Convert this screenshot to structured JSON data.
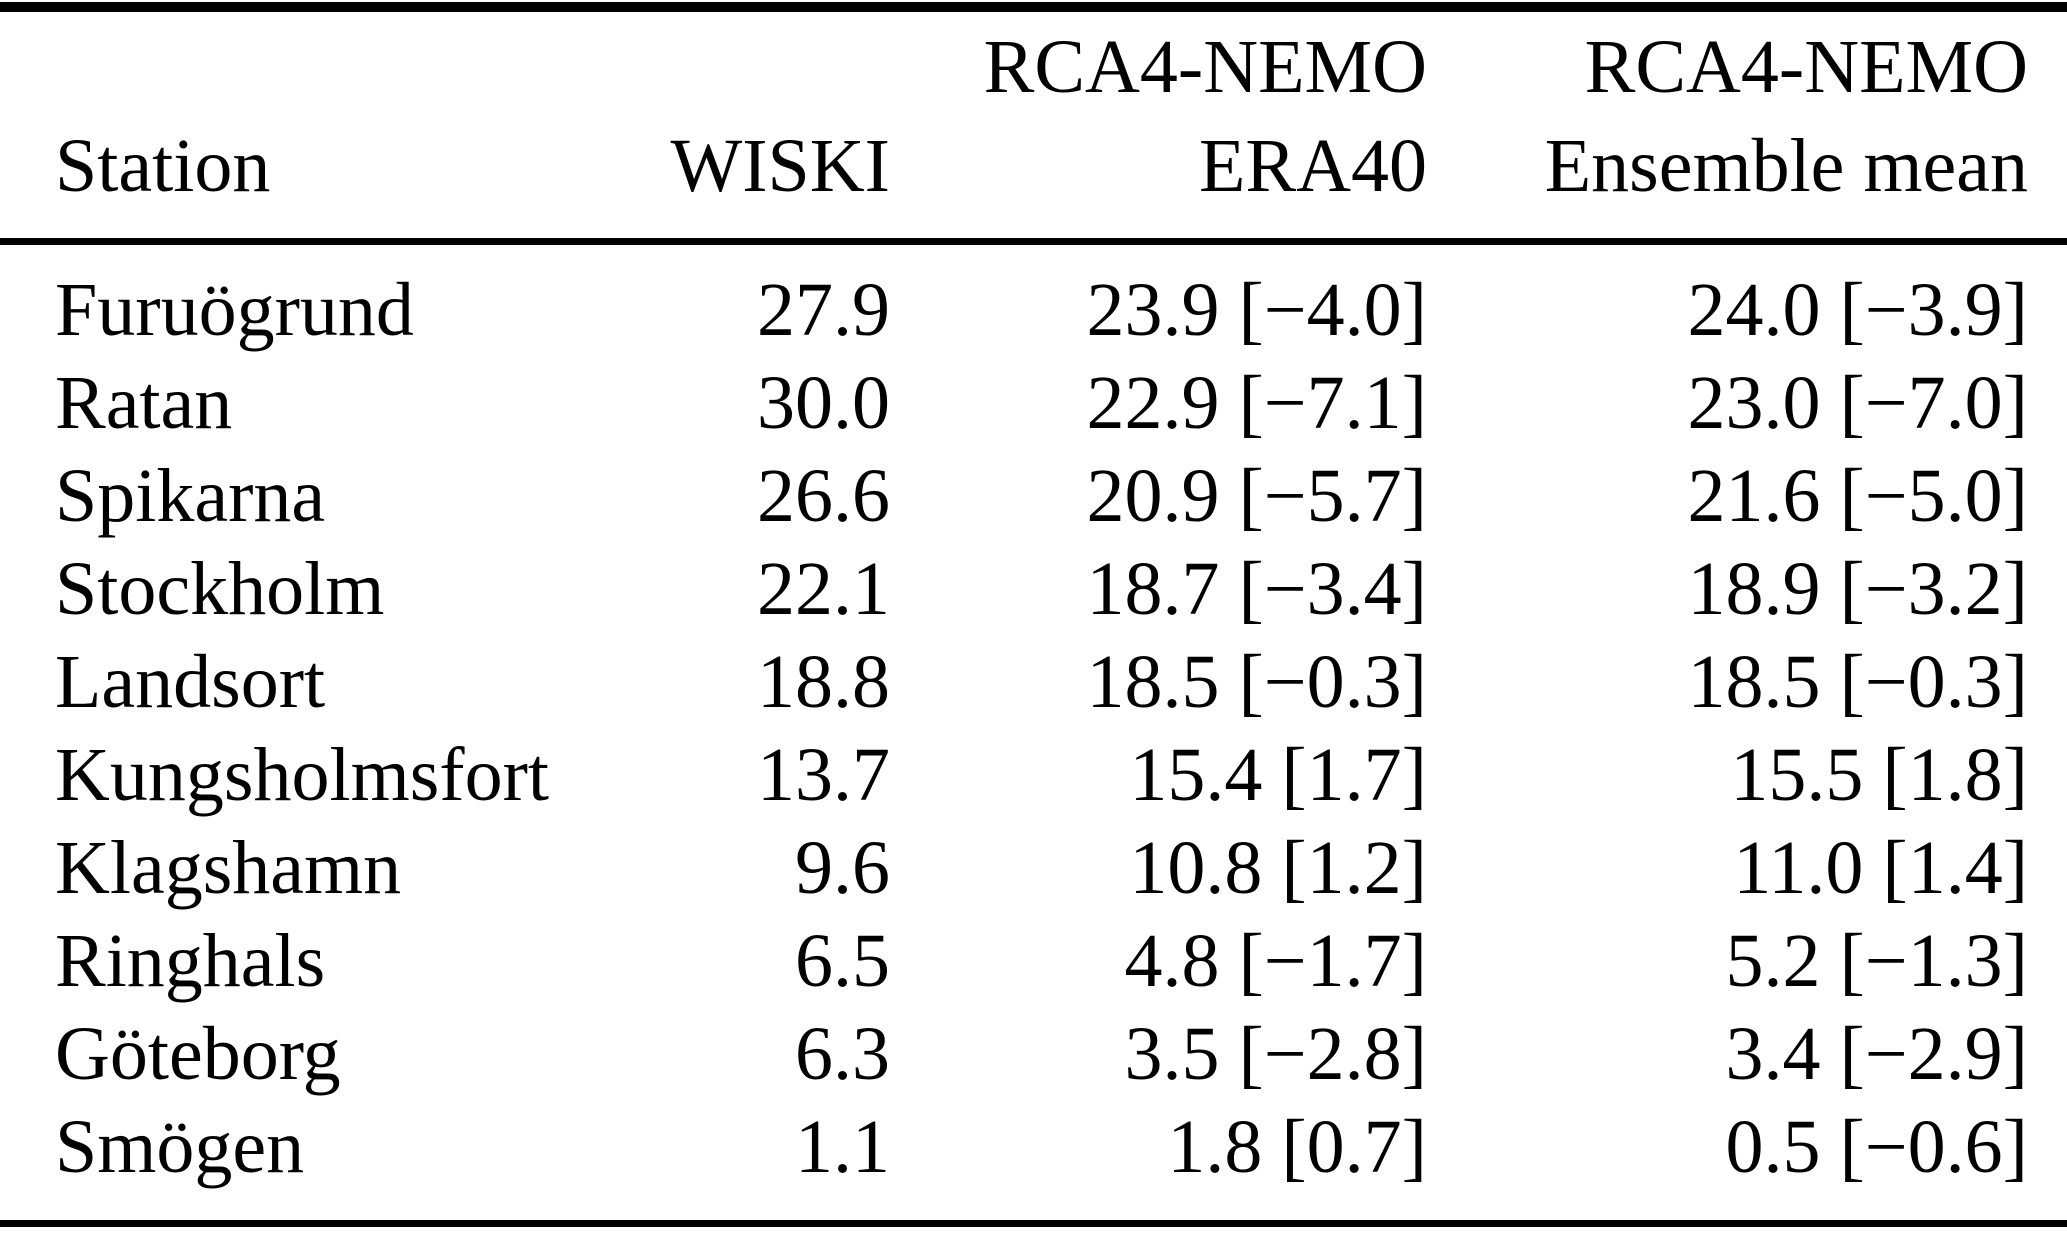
{
  "table": {
    "header": {
      "station": "Station",
      "wiski": "WISKI",
      "col3_top": "RCA4-NEMO",
      "col3_bottom": "ERA40",
      "col4_top": "RCA4-NEMO",
      "col4_bottom": "Ensemble mean"
    },
    "rows": [
      [
        "Furuögrund",
        "27.9",
        "23.9 [−4.0]",
        "24.0 [−3.9]"
      ],
      [
        "Ratan",
        "30.0",
        "22.9 [−7.1]",
        "23.0 [−7.0]"
      ],
      [
        "Spikarna",
        "26.6",
        "20.9 [−5.7]",
        "21.6 [−5.0]"
      ],
      [
        "Stockholm",
        "22.1",
        "18.7 [−3.4]",
        "18.9 [−3.2]"
      ],
      [
        "Landsort",
        "18.8",
        "18.5 [−0.3]",
        "18.5 [−0.3]"
      ],
      [
        "Kungsholmsfort",
        "13.7",
        "15.4 [1.7]",
        "15.5 [1.8]"
      ],
      [
        "Klagshamn",
        "9.6",
        "10.8 [1.2]",
        "11.0 [1.4]"
      ],
      [
        "Ringhals",
        "6.5",
        "4.8 [−1.7]",
        "5.2 [−1.3]"
      ],
      [
        "Göteborg",
        "6.3",
        "3.5 [−2.8]",
        "3.4 [−2.9]"
      ],
      [
        "Smögen",
        "1.1",
        "1.8 [0.7]",
        "0.5 [−0.6]"
      ]
    ]
  },
  "chart_data": {
    "type": "table",
    "columns": [
      "Station",
      "WISKI",
      "RCA4-NEMO ERA40",
      "RCA4-NEMO Ensemble mean"
    ],
    "stations": [
      "Furuögrund",
      "Ratan",
      "Spikarna",
      "Stockholm",
      "Landsort",
      "Kungsholmsfort",
      "Klagshamn",
      "Ringhals",
      "Göteborg",
      "Smögen"
    ],
    "wiski": [
      27.9,
      30.0,
      26.6,
      22.1,
      18.8,
      13.7,
      9.6,
      6.5,
      6.3,
      1.1
    ],
    "era40": [
      23.9,
      22.9,
      20.9,
      18.7,
      18.5,
      15.4,
      10.8,
      4.8,
      3.5,
      1.8
    ],
    "era40_bias": [
      -4.0,
      -7.1,
      -5.7,
      -3.4,
      -0.3,
      1.7,
      1.2,
      -1.7,
      -2.8,
      0.7
    ],
    "ensemble_mean": [
      24.0,
      23.0,
      21.6,
      18.9,
      18.5,
      15.5,
      11.0,
      5.2,
      3.4,
      0.5
    ],
    "ensemble_mean_bias": [
      -3.9,
      -7.0,
      -5.0,
      -3.2,
      -0.3,
      1.8,
      1.4,
      -1.3,
      -2.9,
      -0.6
    ]
  }
}
